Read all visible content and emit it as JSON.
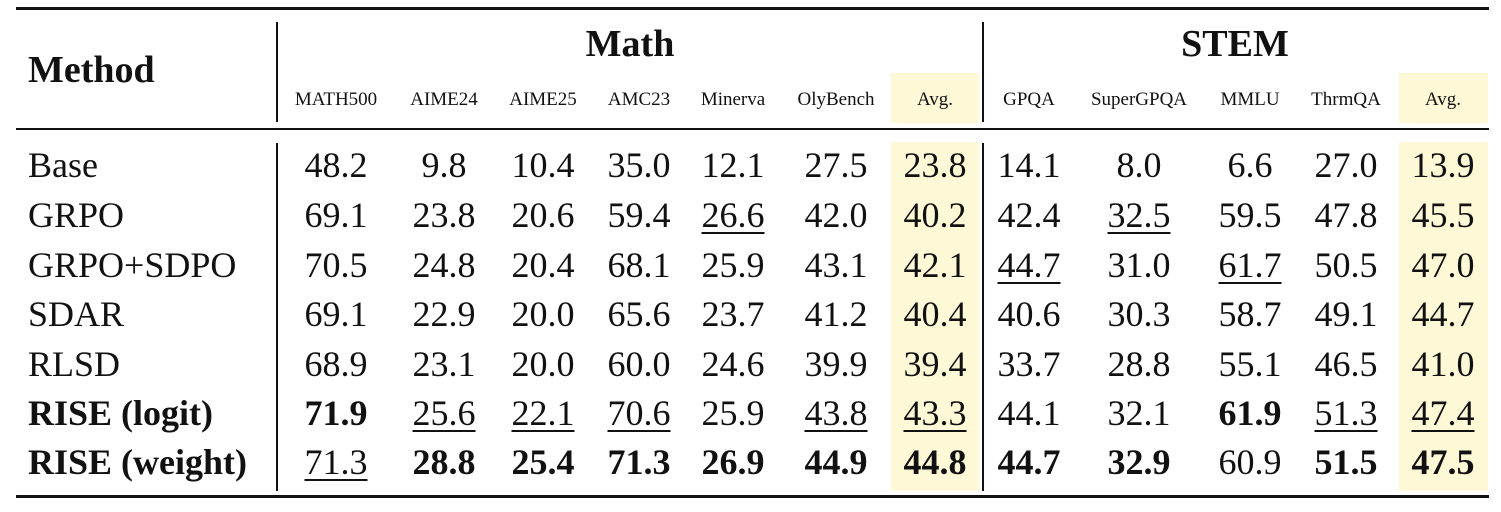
{
  "header": {
    "method_label": "Method",
    "groups": [
      "Math",
      "STEM"
    ],
    "columns": [
      "MATH500",
      "AIME24",
      "AIME25",
      "AMC23",
      "Minerva",
      "OlyBench",
      "Avg.",
      "GPQA",
      "SuperGPQA",
      "MMLU",
      "ThrmQA",
      "Avg."
    ]
  },
  "rows": [
    {
      "method": "Base",
      "method_bold": false,
      "values": [
        "48.2",
        "9.8",
        "10.4",
        "35.0",
        "12.1",
        "27.5",
        "23.8",
        "14.1",
        "8.0",
        "6.6",
        "27.0",
        "13.9"
      ],
      "bold": [],
      "underline": []
    },
    {
      "method": "GRPO",
      "method_bold": false,
      "values": [
        "69.1",
        "23.8",
        "20.6",
        "59.4",
        "26.6",
        "42.0",
        "40.2",
        "42.4",
        "32.5",
        "59.5",
        "47.8",
        "45.5"
      ],
      "bold": [],
      "underline": [
        4,
        8
      ]
    },
    {
      "method": "GRPO+SDPO",
      "method_bold": false,
      "values": [
        "70.5",
        "24.8",
        "20.4",
        "68.1",
        "25.9",
        "43.1",
        "42.1",
        "44.7",
        "31.0",
        "61.7",
        "50.5",
        "47.0"
      ],
      "bold": [],
      "underline": [
        7,
        9
      ]
    },
    {
      "method": "SDAR",
      "method_bold": false,
      "values": [
        "69.1",
        "22.9",
        "20.0",
        "65.6",
        "23.7",
        "41.2",
        "40.4",
        "40.6",
        "30.3",
        "58.7",
        "49.1",
        "44.7"
      ],
      "bold": [],
      "underline": []
    },
    {
      "method": "RLSD",
      "method_bold": false,
      "values": [
        "68.9",
        "23.1",
        "20.0",
        "60.0",
        "24.6",
        "39.9",
        "39.4",
        "33.7",
        "28.8",
        "55.1",
        "46.5",
        "41.0"
      ],
      "bold": [],
      "underline": []
    },
    {
      "method": "RISE (logit)",
      "method_bold": true,
      "values": [
        "71.9",
        "25.6",
        "22.1",
        "70.6",
        "25.9",
        "43.8",
        "43.3",
        "44.1",
        "32.1",
        "61.9",
        "51.3",
        "47.4"
      ],
      "bold": [
        0,
        9
      ],
      "underline": [
        1,
        2,
        3,
        5,
        6,
        10,
        11
      ]
    },
    {
      "method": "RISE (weight)",
      "method_bold": true,
      "values": [
        "71.3",
        "28.8",
        "25.4",
        "71.3",
        "26.9",
        "44.9",
        "44.8",
        "44.7",
        "32.9",
        "60.9",
        "51.5",
        "47.5"
      ],
      "bold": [
        1,
        2,
        3,
        4,
        5,
        6,
        7,
        8,
        10,
        11
      ],
      "underline": [
        0
      ]
    }
  ]
}
